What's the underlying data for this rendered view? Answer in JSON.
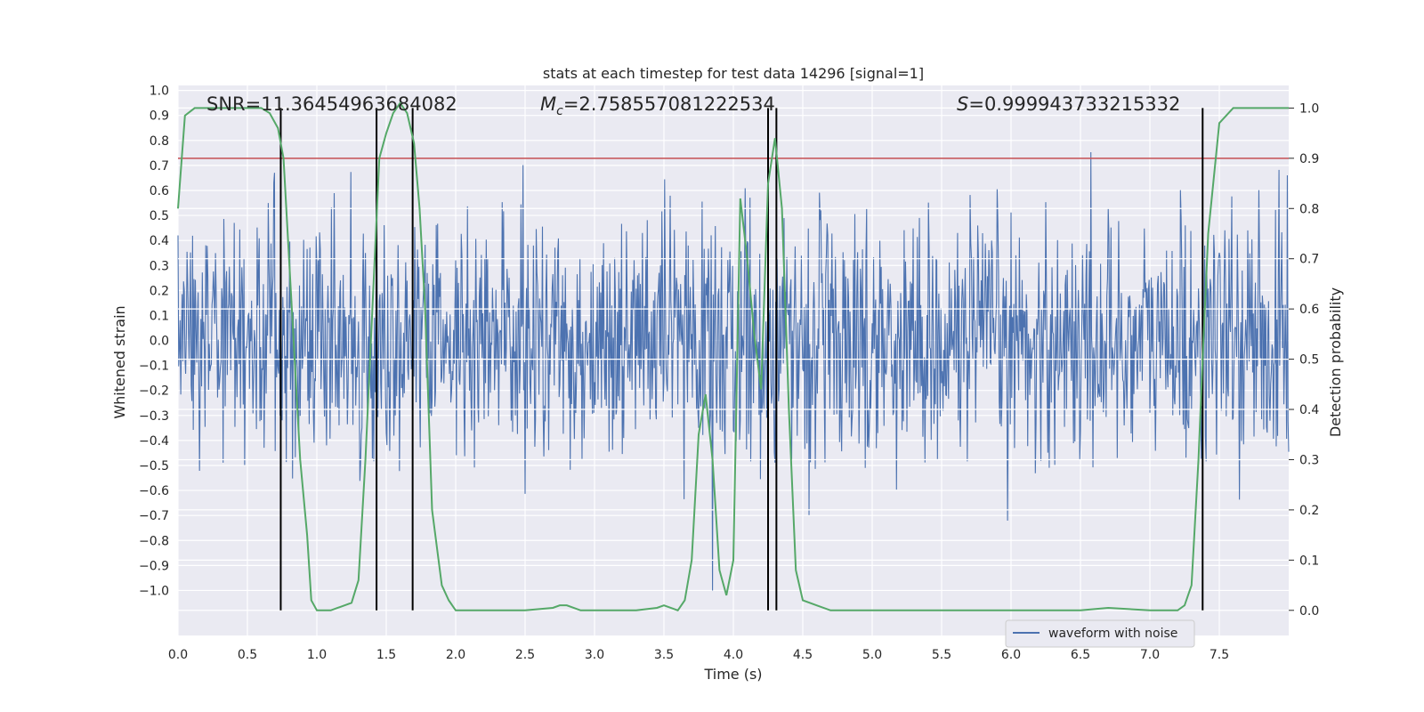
{
  "chart_data": {
    "type": "line",
    "title": "stats at each timestep for test data 14296 [signal=1]",
    "xlabel": "Time (s)",
    "ylabel_left": "Whitened strain",
    "ylabel_right": "Detection probability",
    "xlim": [
      0.0,
      8.0
    ],
    "ylim_left": [
      -1.18,
      1.02
    ],
    "ylim_right": [
      -0.05,
      1.045
    ],
    "x_ticks": [
      "0.0",
      "0.5",
      "1.0",
      "1.5",
      "2.0",
      "2.5",
      "3.0",
      "3.5",
      "4.0",
      "4.5",
      "5.0",
      "5.5",
      "6.0",
      "6.5",
      "7.0",
      "7.5"
    ],
    "y_left_ticks": [
      "1.0",
      "0.9",
      "0.8",
      "0.7",
      "0.6",
      "0.5",
      "0.4",
      "0.3",
      "0.2",
      "0.1",
      "0.0",
      "−0.1",
      "−0.2",
      "−0.3",
      "−0.4",
      "−0.5",
      "−0.6",
      "−0.7",
      "−0.8",
      "−0.9",
      "−1.0"
    ],
    "y_right_ticks": [
      "1.0",
      "0.9",
      "0.8",
      "0.7",
      "0.6",
      "0.5",
      "0.4",
      "0.3",
      "0.2",
      "0.1",
      "0.0"
    ],
    "grid": true,
    "annotations": {
      "snr": "SNR=11.36454963684082",
      "mc_symbol": "M",
      "mc_sub": "c",
      "mc_value": "=2.758557081222534",
      "s_symbol": "S",
      "s_value": "=0.999943733215332"
    },
    "threshold": 0.9,
    "event_lines_x": [
      0.74,
      1.43,
      1.69,
      4.25,
      4.31,
      7.38
    ],
    "waveform_seed": 14296,
    "series": [
      {
        "name": "waveform with noise",
        "axis": "left",
        "color": "#4c72b0"
      },
      {
        "name": "Detection probability",
        "axis": "right",
        "color": "#55a868",
        "x": [
          0.0,
          0.05,
          0.12,
          0.2,
          0.35,
          0.5,
          0.6,
          0.66,
          0.72,
          0.76,
          0.82,
          0.88,
          0.93,
          0.96,
          1.0,
          1.05,
          1.1,
          1.15,
          1.2,
          1.25,
          1.3,
          1.35,
          1.4,
          1.45,
          1.5,
          1.55,
          1.6,
          1.65,
          1.7,
          1.74,
          1.78,
          1.83,
          1.9,
          1.95,
          2.0,
          2.1,
          2.3,
          2.5,
          2.7,
          2.75,
          2.8,
          2.9,
          3.1,
          3.3,
          3.45,
          3.5,
          3.6,
          3.65,
          3.7,
          3.75,
          3.8,
          3.85,
          3.9,
          3.95,
          4.0,
          4.05,
          4.1,
          4.15,
          4.2,
          4.25,
          4.3,
          4.35,
          4.4,
          4.45,
          4.5,
          4.6,
          4.7,
          5.0,
          5.5,
          6.0,
          6.5,
          6.7,
          7.0,
          7.2,
          7.25,
          7.3,
          7.35,
          7.38,
          7.42,
          7.5,
          7.6,
          8.0
        ],
        "y": [
          0.8,
          0.985,
          1.0,
          1.0,
          1.0,
          1.0,
          1.0,
          0.99,
          0.96,
          0.9,
          0.6,
          0.3,
          0.15,
          0.02,
          0.0,
          0.0,
          0.0,
          0.005,
          0.01,
          0.015,
          0.06,
          0.3,
          0.6,
          0.9,
          0.95,
          0.99,
          1.01,
          0.99,
          0.93,
          0.8,
          0.6,
          0.2,
          0.05,
          0.02,
          0.0,
          0.0,
          0.0,
          0.0,
          0.005,
          0.01,
          0.01,
          0.0,
          0.0,
          0.0,
          0.005,
          0.01,
          0.0,
          0.02,
          0.1,
          0.35,
          0.43,
          0.3,
          0.08,
          0.03,
          0.1,
          0.82,
          0.7,
          0.55,
          0.44,
          0.85,
          0.94,
          0.8,
          0.4,
          0.08,
          0.02,
          0.01,
          0.0,
          0.0,
          0.0,
          0.0,
          0.0,
          0.005,
          0.0,
          0.0,
          0.01,
          0.05,
          0.3,
          0.5,
          0.75,
          0.97,
          1.0,
          1.0
        ]
      }
    ],
    "legend": {
      "position": "bottom-right",
      "entries": [
        "waveform with noise"
      ]
    }
  }
}
